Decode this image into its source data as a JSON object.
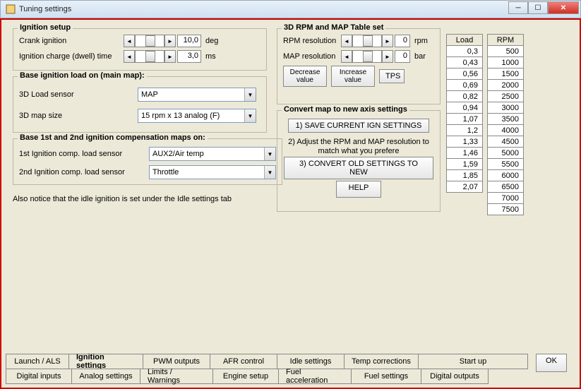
{
  "window": {
    "title": "Tuning settings"
  },
  "ignition_setup": {
    "legend": "Ignition setup",
    "crank_label": "Crank ignition",
    "crank_value": "10,0",
    "crank_unit": "deg",
    "dwell_label": "Ignition charge (dwell) time",
    "dwell_value": "3,0",
    "dwell_unit": "ms"
  },
  "base_load": {
    "legend": "Base ignition load on (main map):",
    "load_sensor_label": "3D Load sensor",
    "load_sensor_value": "MAP",
    "map_size_label": "3D map size",
    "map_size_value": "15 rpm x 13 analog (F)"
  },
  "comp_maps": {
    "legend": "Base 1st and 2nd ignition compensation maps on:",
    "first_label": "1st Ignition comp. load sensor",
    "first_value": "AUX2/Air temp",
    "second_label": "2nd Ignition comp. load sensor",
    "second_value": "Throttle"
  },
  "rpm_map": {
    "legend": "3D RPM and MAP Table set",
    "rpm_res_label": "RPM resolution",
    "rpm_res_value": "0",
    "rpm_unit": "rpm",
    "map_res_label": "MAP resolution",
    "map_res_value": "0",
    "map_unit": "bar",
    "decrease": "Decrease value",
    "increase": "Increase value",
    "tps": "TPS"
  },
  "convert": {
    "legend": "Convert map to new axis settings",
    "step1": "1) SAVE CURRENT IGN SETTINGS",
    "step2": "2) Adjust the RPM and MAP resolution to match what you prefere",
    "step3": "3) CONVERT OLD SETTINGS TO NEW",
    "help": "HELP"
  },
  "load_table": {
    "header": "Load",
    "values": [
      "0,3",
      "0,43",
      "0,56",
      "0,69",
      "0,82",
      "0,94",
      "1,07",
      "1,2",
      "1,33",
      "1,46",
      "1,59",
      "1,85",
      "2,07"
    ]
  },
  "rpm_table": {
    "header": "RPM",
    "values": [
      "500",
      "1000",
      "1500",
      "2000",
      "2500",
      "3000",
      "3500",
      "4000",
      "4500",
      "5000",
      "5500",
      "6000",
      "6500",
      "7000",
      "7500"
    ]
  },
  "note": "Also notice that the idle ignition is set under the Idle settings tab",
  "tabs": {
    "row1": [
      "Launch / ALS",
      "Ignition settings",
      "PWM outputs",
      "AFR control",
      "Idle settings",
      "Temp corrections",
      "Start up"
    ],
    "row2": [
      "Digital inputs",
      "Analog settings",
      "Limits / Warnings",
      "Engine setup",
      "Fuel acceleration",
      "Fuel settings",
      "Digital outputs"
    ],
    "active": "Ignition settings"
  },
  "ok": "OK"
}
